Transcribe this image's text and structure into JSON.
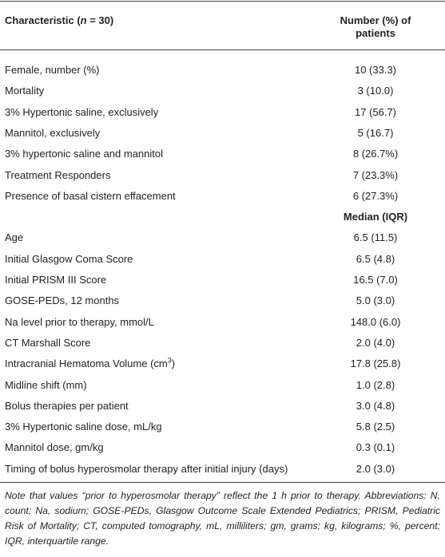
{
  "table": {
    "header": {
      "characteristic": [
        "Characteristic (",
        "n",
        " = 30)"
      ],
      "number": "Number (%) of patients"
    },
    "rows": [
      [
        "Female, number (%)",
        "10 (33.3)"
      ],
      [
        "Mortality",
        "3 (10.0)"
      ],
      [
        "3% Hypertonic saline, exclusively",
        "17 (56.7)"
      ],
      [
        "Mannitol, exclusively",
        "5 (16.7)"
      ],
      [
        "3% hypertonic saline and mannitol",
        "8 (26.7%)"
      ],
      [
        "Treatment Responders",
        "7 (23.3%)"
      ],
      [
        "Presence of basal cistern effacement",
        "6 (27.3%)"
      ]
    ],
    "subheader": "Median (IQR)",
    "rows2": [
      [
        "Age",
        "6.5 (11.5)"
      ],
      [
        "Initial Glasgow Coma Score",
        "6.5 (4.8)"
      ],
      [
        "Initial PRISM III Score",
        "16.5 (7.0)"
      ],
      [
        "GOSE-PEDs, 12 months",
        "5.0 (3.0)"
      ],
      [
        "Na level prior to therapy, mmol/L",
        "148.0 (6.0)"
      ],
      [
        "CT Marshall Score",
        "2.0 (4.0)"
      ],
      [
        [
          "Intracranial Hematoma Volume (cm",
          "3",
          ")"
        ],
        "17.8 (25.8)"
      ],
      [
        "Midline shift (mm)",
        "1.0 (2.8)"
      ],
      [
        "Bolus therapies per patient",
        "3.0 (4.8)"
      ],
      [
        "3% Hypertonic saline dose, mL/kg",
        "5.8 (2.5)"
      ],
      [
        "Mannitol dose, gm/kg",
        "0.3 (0.1)"
      ],
      [
        "Timing of bolus hyperosmolar therapy after initial injury (days)",
        "2.0 (3.0)"
      ]
    ],
    "note": "Note that values “prior to hyperosmolar therapy” reflect the 1 h prior to therapy. Abbreviations: N, count; Na, sodium; GOSE-PEDs, Glasgow Outcome Scale Extended Pediatrics; PRISM, Pediatric Risk of Mortality; CT, computed tomography, mL, milliliters; gm, grams; kg, kilograms; %, percent; IQR, interquartile range."
  }
}
